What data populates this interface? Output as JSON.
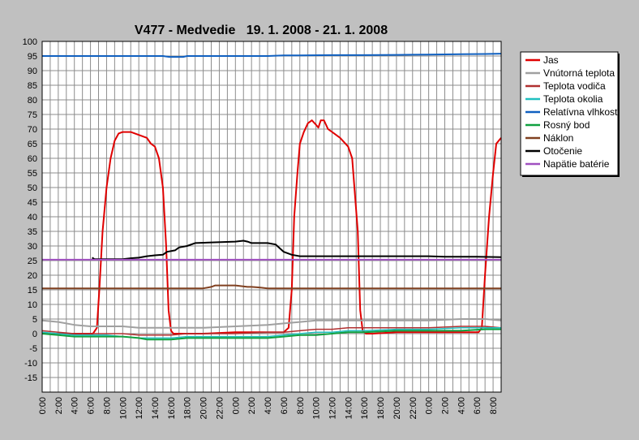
{
  "chart_data": {
    "type": "line",
    "title": "V477 - Medvedie   19. 1. 2008 - 21. 1. 2008",
    "xlabel": "",
    "ylabel": "",
    "ylim": [
      -20,
      100
    ],
    "xlim": [
      0,
      57
    ],
    "yticks": [
      100,
      95,
      90,
      85,
      80,
      75,
      70,
      65,
      60,
      55,
      50,
      45,
      40,
      35,
      30,
      25,
      20,
      15,
      10,
      5,
      0,
      -5,
      -10,
      -15
    ],
    "xtick_labels": [
      "0:00",
      "2:00",
      "4:00",
      "6:00",
      "8:00",
      "10:00",
      "12:00",
      "14:00",
      "16:00",
      "18:00",
      "20:00",
      "22:00",
      "0:00",
      "2:00",
      "4:00",
      "6:00",
      "8:00",
      "10:00",
      "12:00",
      "14:00",
      "16:00",
      "18:00",
      "20:00",
      "22:00",
      "0:00",
      "2:00",
      "4:00",
      "6:00",
      "8:00"
    ],
    "grid": true,
    "legend_position": "right",
    "series": [
      {
        "name": "Jas",
        "color": "#e00000",
        "width": 2,
        "x": [
          0,
          6.3,
          6.8,
          7.1,
          7.5,
          8,
          8.5,
          9,
          9.5,
          10,
          11,
          12,
          13,
          13.5,
          14,
          14.5,
          15,
          15.4,
          15.7,
          16,
          16.3,
          17,
          20,
          24,
          28,
          30,
          30.6,
          31,
          31.3,
          31.7,
          32,
          32.5,
          33,
          33.5,
          34,
          34.3,
          34.6,
          35,
          35.5,
          36,
          37,
          38,
          38.5,
          39.2,
          39.5,
          39.8,
          40.2,
          41,
          44,
          48,
          52,
          54.2,
          54.6,
          55,
          55.5,
          56,
          56.4,
          57
        ],
        "y": [
          0,
          0,
          2,
          15,
          35,
          50,
          60,
          66,
          68.5,
          69,
          69,
          68,
          67,
          65,
          64,
          60,
          50,
          30,
          8,
          1,
          0,
          0,
          0,
          0.5,
          0.5,
          0.5,
          2,
          15,
          40,
          55,
          65,
          69,
          72,
          73,
          71.5,
          70.5,
          73,
          73,
          70,
          69,
          67,
          64,
          60,
          35,
          8,
          1,
          0,
          0,
          0.5,
          0.5,
          0.5,
          0.5,
          2,
          20,
          40,
          55,
          65,
          67
        ]
      },
      {
        "name": "Vnútorná teplota",
        "color": "#a0a0a0",
        "width": 2,
        "x": [
          0,
          2,
          4,
          6,
          10,
          12,
          14,
          16,
          18,
          20,
          24,
          28,
          30,
          32,
          34,
          36,
          40,
          44,
          48,
          52,
          55,
          57
        ],
        "y": [
          4.5,
          4,
          3,
          2.5,
          2.5,
          2,
          2,
          2,
          2,
          2,
          2.5,
          3,
          3.5,
          4,
          4.5,
          4.5,
          4.5,
          4.5,
          4.5,
          5,
          5,
          4.5
        ]
      },
      {
        "name": "Teplota vodiča",
        "color": "#b03030",
        "width": 1.5,
        "x": [
          0,
          2,
          4,
          6,
          8,
          10,
          12,
          14,
          16,
          18,
          20,
          24,
          28,
          30,
          32,
          34,
          36,
          38,
          40,
          44,
          48,
          52,
          55,
          57
        ],
        "y": [
          1,
          0.5,
          0,
          0,
          0,
          0,
          -0.5,
          -0.5,
          -0.5,
          0,
          0,
          0,
          0.5,
          0.5,
          1,
          1.5,
          1.5,
          2,
          2,
          2,
          2,
          2.5,
          2.5,
          2
        ]
      },
      {
        "name": "Teplota okolia",
        "color": "#20c0c0",
        "width": 1.5,
        "x": [
          0,
          2,
          4,
          6,
          8,
          10,
          12,
          14,
          16,
          18,
          20,
          24,
          28,
          30,
          32,
          34,
          36,
          38,
          40,
          44,
          48,
          52,
          55,
          57
        ],
        "y": [
          0.5,
          0,
          -0.5,
          -0.5,
          -0.5,
          -1,
          -1.5,
          -1.5,
          -1.5,
          -1,
          -1,
          -1,
          -1,
          -0.5,
          0,
          0.5,
          0.5,
          1,
          1,
          1.5,
          1.5,
          2,
          2,
          2
        ]
      },
      {
        "name": "Relatívna vlhkosť",
        "color": "#1060c0",
        "width": 2,
        "x": [
          0,
          15,
          15.8,
          17.5,
          18,
          24,
          28,
          30,
          32,
          36,
          40,
          44,
          48,
          52,
          55,
          57
        ],
        "y": [
          95,
          95,
          94.7,
          94.7,
          95,
          95,
          95,
          95.2,
          95.2,
          95.3,
          95.3,
          95.4,
          95.5,
          95.6,
          95.7,
          95.8
        ]
      },
      {
        "name": "Rosný bod",
        "color": "#10a040",
        "width": 2,
        "x": [
          0,
          2,
          4,
          6,
          8,
          10,
          12,
          13,
          14,
          15,
          16,
          18,
          20,
          24,
          28,
          30,
          32,
          34,
          36,
          38,
          40,
          44,
          48,
          52,
          55,
          57
        ],
        "y": [
          0,
          -0.5,
          -1,
          -1,
          -1,
          -1,
          -1.5,
          -2,
          -2,
          -2,
          -2,
          -1.5,
          -1.5,
          -1.5,
          -1.5,
          -1,
          -0.5,
          -0.5,
          0,
          0.5,
          0.5,
          1,
          1,
          1,
          1.5,
          1.5
        ]
      },
      {
        "name": "Náklon",
        "color": "#804020",
        "width": 2,
        "x": [
          0,
          20,
          21,
          21.5,
          24,
          25.5,
          26,
          27,
          28,
          57
        ],
        "y": [
          15.5,
          15.5,
          16,
          16.5,
          16.5,
          16,
          16,
          15.8,
          15.5,
          15.5
        ]
      },
      {
        "name": "Otočenie",
        "color": "#000000",
        "width": 2,
        "x": [
          6.2,
          6.5,
          10,
          11,
          12,
          13,
          14,
          15,
          15.5,
          16.5,
          17,
          18,
          19,
          24,
          25,
          25.5,
          26,
          27,
          28,
          29,
          30,
          31,
          32,
          34,
          38,
          44,
          48,
          50,
          54,
          57
        ],
        "y": [
          26,
          25.5,
          25.5,
          25.8,
          26,
          26.5,
          26.8,
          27,
          28,
          28.5,
          29.5,
          30,
          31,
          31.5,
          31.8,
          31.5,
          31,
          31,
          31,
          30.5,
          28,
          27,
          26.5,
          26.5,
          26.5,
          26.5,
          26.5,
          26.3,
          26.3,
          26.2
        ]
      },
      {
        "name": "Napätie batérie",
        "color": "#a050c0",
        "width": 2,
        "x": [
          0,
          57
        ],
        "y": [
          25.3,
          25.3
        ]
      }
    ]
  }
}
